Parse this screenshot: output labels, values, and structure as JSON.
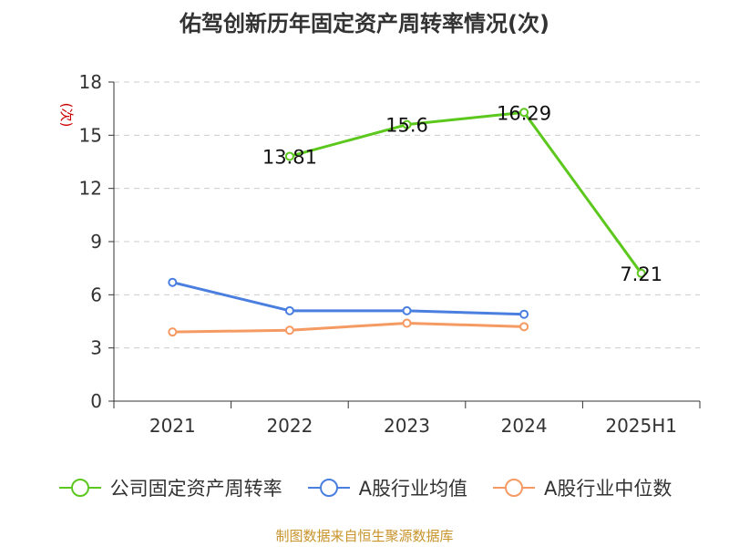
{
  "chart_data": {
    "type": "line",
    "title": "佑驾创新历年固定资产周转率情况(次)",
    "ylabel": "(次)",
    "ylim": [
      0,
      18
    ],
    "yticks": [
      "0",
      "3",
      "6",
      "9",
      "12",
      "15",
      "18"
    ],
    "grid": true,
    "legend_position": "bottom",
    "categories": [
      "2021",
      "2022",
      "2023",
      "2024",
      "2025H1"
    ],
    "series": [
      {
        "name": "公司固定资产周转率",
        "color": "#5cc81e",
        "values": [
          null,
          13.81,
          15.6,
          16.29,
          7.21
        ],
        "labels": [
          "",
          "13.81",
          "15.6",
          "16.29",
          "7.21"
        ]
      },
      {
        "name": "A股行业均值",
        "color": "#4a7fe0",
        "values": [
          6.7,
          5.1,
          5.1,
          4.9,
          null
        ]
      },
      {
        "name": "A股行业中位数",
        "color": "#f59a63",
        "values": [
          3.9,
          4.0,
          4.4,
          4.2,
          null
        ]
      }
    ]
  },
  "source": "制图数据来自恒生聚源数据库"
}
